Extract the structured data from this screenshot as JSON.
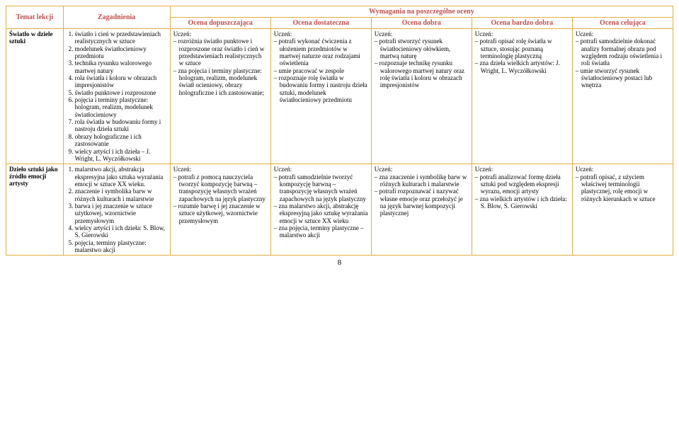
{
  "header": {
    "col_temat": "Temat lekcji",
    "col_zag": "Zagadnienia",
    "col_span_title": "Wymagania na poszczególne oceny",
    "grades": [
      "Ocena dopuszczająca",
      "Ocena dostateczna",
      "Ocena dobra",
      "Ocena bardzo dobra",
      "Ocena celująca"
    ]
  },
  "rows": [
    {
      "temat": "Światło w dziele sztuki",
      "zag_items": [
        "światło i cień w przedstawieniach realistycznych w sztuce",
        "modelunek światłocieniowy przedmiotu",
        "technika rysunku walorowego martwej natury",
        "rola światła i koloru w obrazach impresjonistów",
        "światło punktowe i rozproszone",
        "pojęcia i terminy plastyczne: hologram, realizm, modelunek światłocieniowy",
        "rola światła w budowaniu formy i nastroju dzieła sztuki",
        "obrazy holograficzne i ich zastosowanie",
        "wielcy artyści i ich dzieła – J. Wright, L. Wyczółkowski"
      ],
      "grades": [
        {
          "label": "Uczeń:",
          "items": [
            "rozróżnia światło punktowe i rozproszone oraz światło i cień w przedstawieniach realistycznych w sztuce",
            "zna pojęcia i terminy plastyczne: hologram, realizm, modelunek światł ocieniowy, obrazy holograficzne i ich zastosowanie;"
          ]
        },
        {
          "label": "Uczeń:",
          "items": [
            "potrafi wykonać ćwiczenia z ułożeniem przedmiotów w martwej naturze oraz rodzajami oświetlenia",
            "umie pracować w zespole",
            "rozpoznaje rolę światła w budowaniu formy i nastroju dzieła sztuki, modelunek światłocieniowy przedmiotu"
          ]
        },
        {
          "label": "Uczeń:",
          "items": [
            "potrafi stworzyć rysunek światłocieniowy ołówkiem, martwą naturę",
            "rozpoznaje  technikę rysunku walorowego martwej natury oraz rolę światła i koloru w obrazach impresjonistów"
          ]
        },
        {
          "label": "Uczeń:",
          "items": [
            "potrafi opisać rolę światła w sztuce, stosując poznaną terminologię plastyczną",
            "zna dzieła wielkich artystów: J. Wright, L. Wyczółkowski"
          ]
        },
        {
          "label": "Uczeń:",
          "items": [
            "potrafi samodzielnie dokonać analizy formalnej obrazu pod względem rodzaju oświetlenia i roli światła",
            "umie stworzyć rysunek światłocieniowy postaci lub wnętrza"
          ]
        }
      ]
    },
    {
      "temat": "Dzieło sztuki jako źródło emocji artysty",
      "zag_items": [
        "malarstwo akcji, abstrakcja ekspresyjna jako sztuka wyrażania emocji w sztuce XX wieku.",
        "znaczenie i symbolika barw w różnych kulturach i malarstwie",
        "barwa i jej znaczenie w sztuce użytkowej, wzornictwie przemysłowym",
        "wielcy artyści i ich dzieła: S. Blow, S. Gierowski",
        "pojęcia, terminy plastyczne: malarstwo akcji"
      ],
      "grades": [
        {
          "label": "Uczeń:",
          "items": [
            "potrafi z pomocą nauczyciela tworzyć kompozycję barwną – transpozycję własnych wrażeń zapachowych na język plastyczny",
            "rozumie barwę i jej znaczenie w sztuce użytkowej, wzornictwie przemysłowym"
          ]
        },
        {
          "label": "Uczeń:",
          "items": [
            "potrafi samodzielnie tworzyć kompozycję barwną – transpozycję własnych wrażeń zapachowych na język plastyczny",
            "zna malarstwo akcji, abstrakcję ekspresyjną jako sztukę wyrażania emocji w sztuce XX wieku",
            "zna pojęcia, terminy plastyczne – malarstwo akcji"
          ]
        },
        {
          "label": "Uczeń:",
          "items": [
            "zna znaczenie i symbolikę barw w różnych kulturach i malarstwie",
            "potrafi rozpoznawać i nazywać własne emocje oraz przełożyć je na język barwnej kompozycji plastycznej"
          ]
        },
        {
          "label": "Uczeń:",
          "items": [
            "potrafi analizować formę dzieła sztuki pod względem ekspresji wyrazu, emocji artysty",
            "zna wielkich artystów i ich dzieła:  S. Blow, S. Gierowski"
          ]
        },
        {
          "label": "Uczeń:",
          "items": [
            "potrafi opisać, z użyciem właściwej terminologii plastycznej, rolę emocji w różnych kierunkach w sztuce"
          ]
        }
      ]
    }
  ],
  "page_number": "8"
}
